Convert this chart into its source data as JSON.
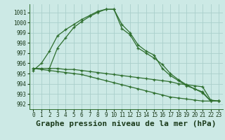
{
  "background_color": "#cce9e5",
  "grid_color": "#aacfcb",
  "line_color": "#2d6e2d",
  "title": "Graphe pression niveau de la mer (hPa)",
  "ylim": [
    991.5,
    1001.8
  ],
  "xlim": [
    -0.5,
    23.5
  ],
  "yticks": [
    992,
    993,
    994,
    995,
    996,
    997,
    998,
    999,
    1000,
    1001
  ],
  "xticks": [
    0,
    1,
    2,
    3,
    4,
    5,
    6,
    7,
    8,
    9,
    10,
    11,
    12,
    13,
    14,
    15,
    16,
    17,
    18,
    19,
    20,
    21,
    22,
    23
  ],
  "lines": [
    {
      "x": [
        0,
        1,
        2,
        3,
        4,
        5,
        6,
        7,
        8,
        9,
        10,
        11,
        12,
        13,
        14,
        15,
        16,
        17,
        18,
        19,
        20,
        21,
        22,
        23
      ],
      "y": [
        995.3,
        996.0,
        997.2,
        998.7,
        999.3,
        999.8,
        1000.3,
        1000.7,
        1001.1,
        1001.3,
        1001.3,
        999.4,
        998.8,
        997.5,
        997.0,
        996.5,
        995.9,
        995.0,
        994.4,
        993.9,
        993.5,
        993.1,
        992.3,
        992.3
      ]
    },
    {
      "x": [
        2,
        3,
        4,
        5,
        6,
        7,
        8,
        9,
        10,
        11,
        12,
        13,
        14,
        15,
        16,
        17,
        18,
        19,
        20,
        21,
        22,
        23
      ],
      "y": [
        995.5,
        997.5,
        998.5,
        999.5,
        1000.1,
        1000.6,
        1001.0,
        1001.3,
        1001.3,
        999.8,
        999.0,
        997.8,
        997.2,
        996.8,
        995.5,
        994.8,
        994.3,
        993.8,
        993.5,
        993.2,
        992.3,
        992.3
      ]
    },
    {
      "x": [
        0,
        1,
        2,
        3,
        4,
        5,
        6,
        7,
        8,
        9,
        10,
        11,
        12,
        13,
        14,
        15,
        16,
        17,
        18,
        19,
        20,
        21,
        22,
        23
      ],
      "y": [
        995.5,
        995.5,
        995.5,
        995.5,
        995.4,
        995.4,
        995.3,
        995.2,
        995.1,
        995.0,
        994.9,
        994.8,
        994.7,
        994.6,
        994.5,
        994.4,
        994.3,
        994.2,
        994.0,
        993.9,
        993.8,
        993.7,
        992.4,
        992.3
      ]
    },
    {
      "x": [
        0,
        1,
        2,
        3,
        4,
        5,
        6,
        7,
        8,
        9,
        10,
        11,
        12,
        13,
        14,
        15,
        16,
        17,
        18,
        19,
        20,
        21,
        22,
        23
      ],
      "y": [
        995.5,
        995.4,
        995.3,
        995.2,
        995.1,
        995.0,
        994.9,
        994.7,
        994.5,
        994.3,
        994.1,
        993.9,
        993.7,
        993.5,
        993.3,
        993.1,
        992.9,
        992.7,
        992.6,
        992.5,
        992.4,
        992.3,
        992.3,
        992.3
      ]
    }
  ]
}
